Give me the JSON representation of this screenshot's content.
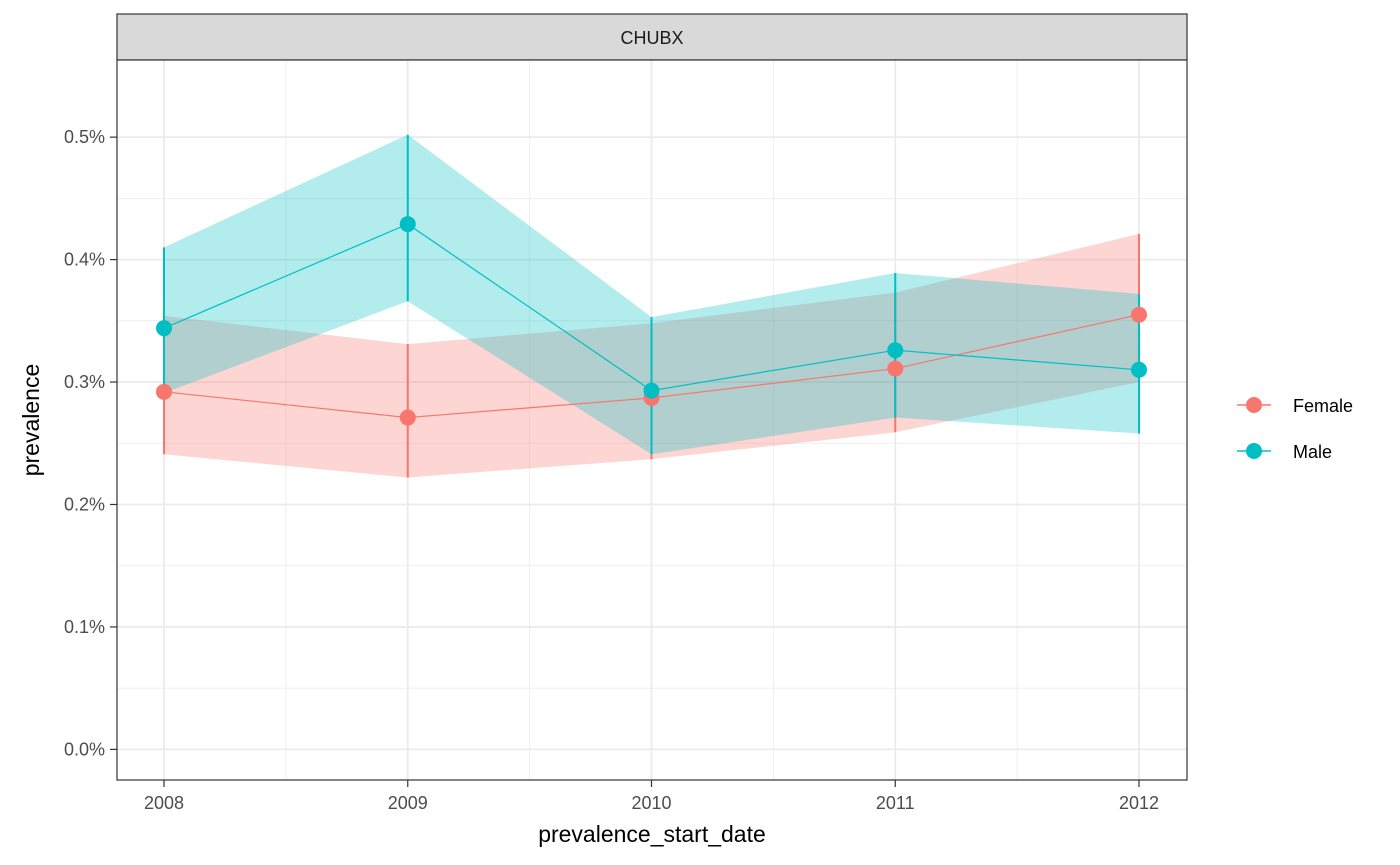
{
  "chart_data": {
    "type": "line",
    "facet_label": "CHUBX",
    "xlabel": "prevalence_start_date",
    "ylabel": "prevalence",
    "categories": [
      "2008",
      "2009",
      "2010",
      "2011",
      "2012"
    ],
    "y_ticks": [
      {
        "value": 0.0,
        "label": "0.0%"
      },
      {
        "value": 0.1,
        "label": "0.1%"
      },
      {
        "value": 0.2,
        "label": "0.2%"
      },
      {
        "value": 0.3,
        "label": "0.3%"
      },
      {
        "value": 0.4,
        "label": "0.4%"
      },
      {
        "value": 0.5,
        "label": "0.5%"
      }
    ],
    "ylim": [
      -0.025,
      0.563
    ],
    "y_unit": "percent",
    "grid": true,
    "legend_position": "right",
    "series": [
      {
        "name": "Female",
        "color": "#F8766D",
        "values": [
          0.292,
          0.271,
          0.287,
          0.311,
          0.355
        ],
        "lower": [
          0.241,
          0.222,
          0.237,
          0.259,
          0.3
        ],
        "upper": [
          0.354,
          0.331,
          0.348,
          0.373,
          0.421
        ]
      },
      {
        "name": "Male",
        "color": "#00BFC4",
        "values": [
          0.344,
          0.429,
          0.293,
          0.326,
          0.31
        ],
        "lower": [
          0.291,
          0.366,
          0.241,
          0.271,
          0.258
        ],
        "upper": [
          0.41,
          0.502,
          0.353,
          0.389,
          0.372
        ]
      }
    ]
  }
}
